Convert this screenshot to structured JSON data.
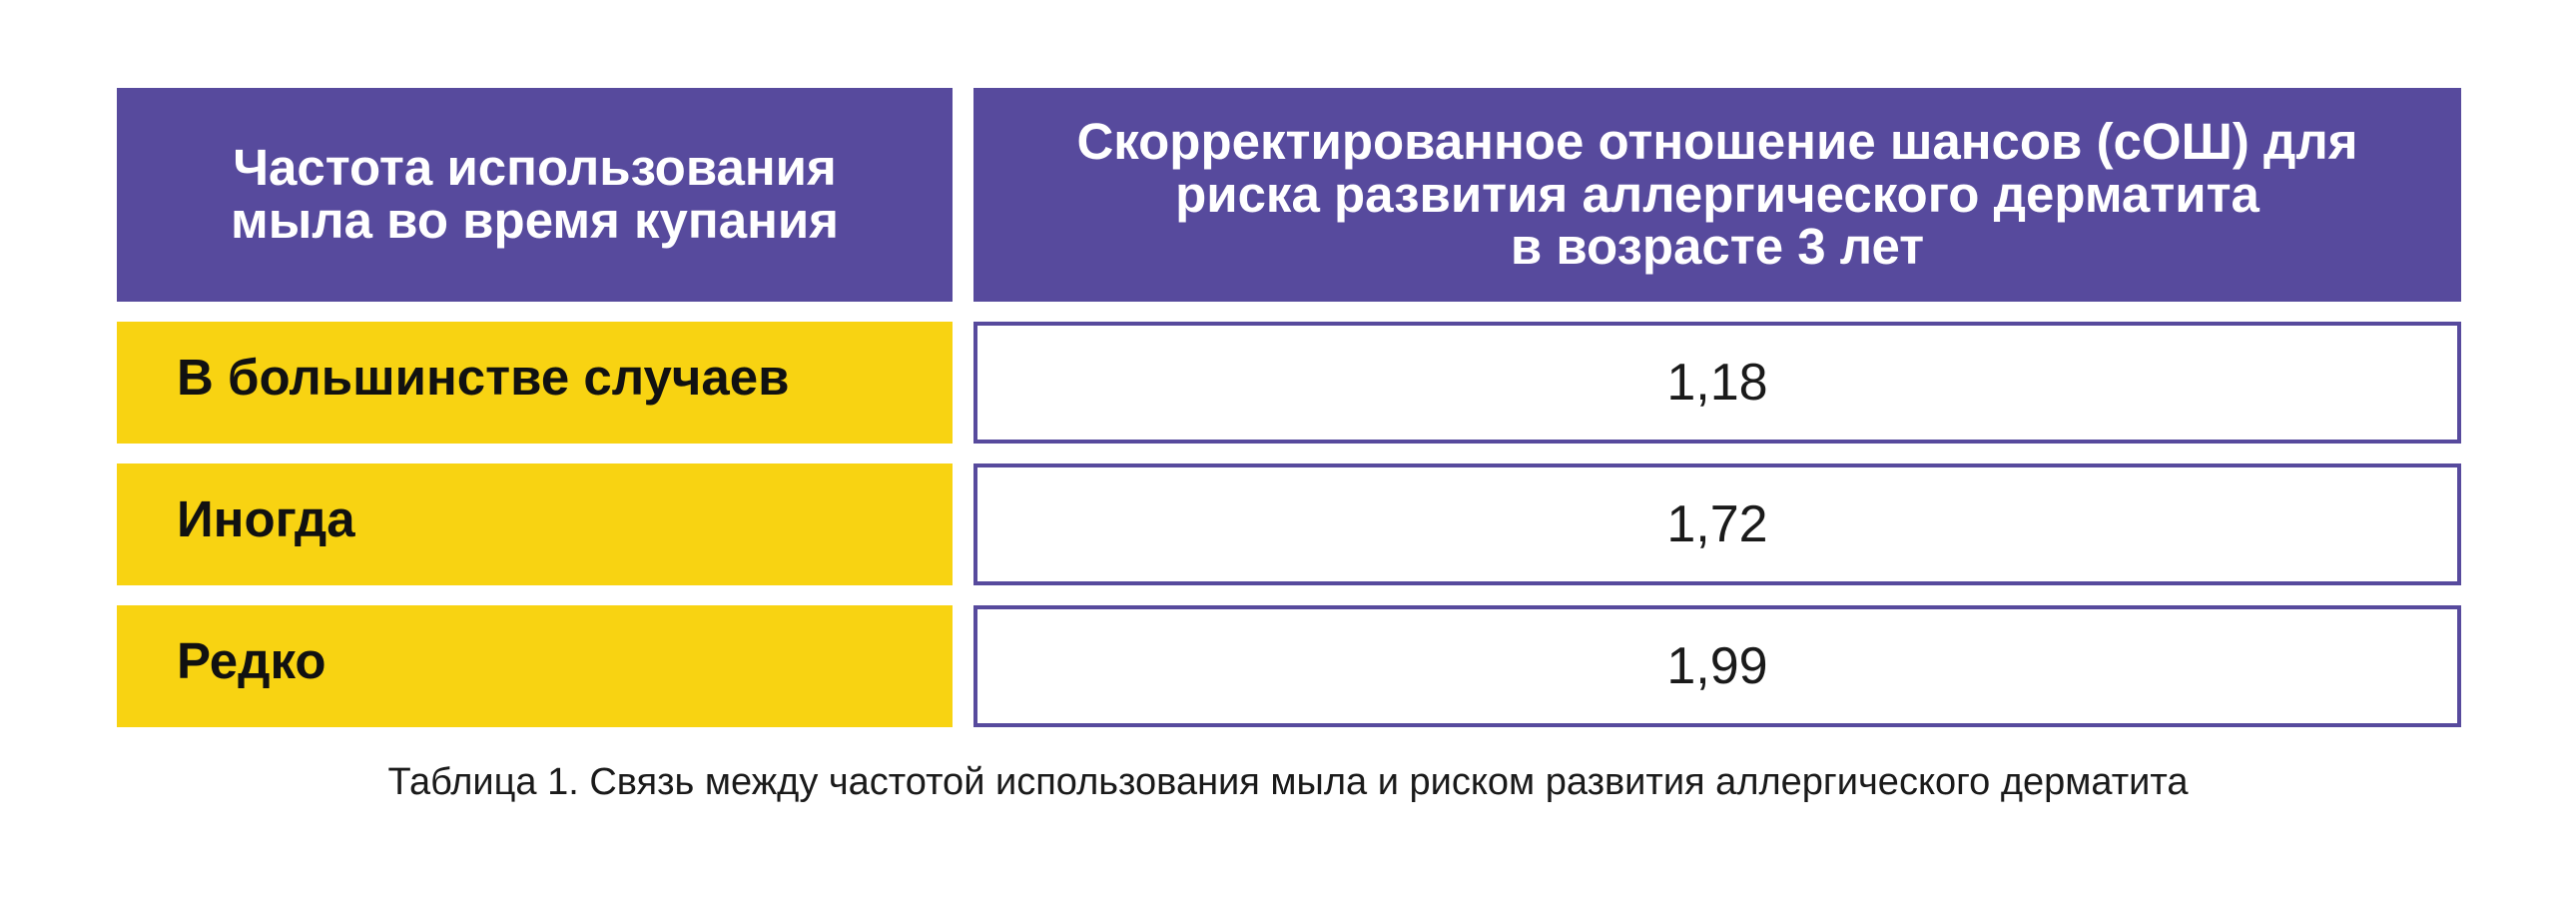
{
  "chart_data": {
    "type": "table",
    "headers": [
      "Частота использования\nмыла во время купания",
      "Скорректированное отношение шансов (сОШ) для\nриска развития аллергического дерматита\nв возрасте 3 лет"
    ],
    "rows": [
      {
        "label": "В большинстве случаев",
        "value": "1,18"
      },
      {
        "label": "Иногда",
        "value": "1,72"
      },
      {
        "label": "Редко",
        "value": "1,99"
      }
    ],
    "caption": "Таблица 1. Связь между частотой использования мыла и риском развития аллергического дерматита"
  },
  "colors": {
    "header_bg": "#574a9d",
    "label_bg": "#f8d312",
    "value_border": "#574a9d"
  }
}
